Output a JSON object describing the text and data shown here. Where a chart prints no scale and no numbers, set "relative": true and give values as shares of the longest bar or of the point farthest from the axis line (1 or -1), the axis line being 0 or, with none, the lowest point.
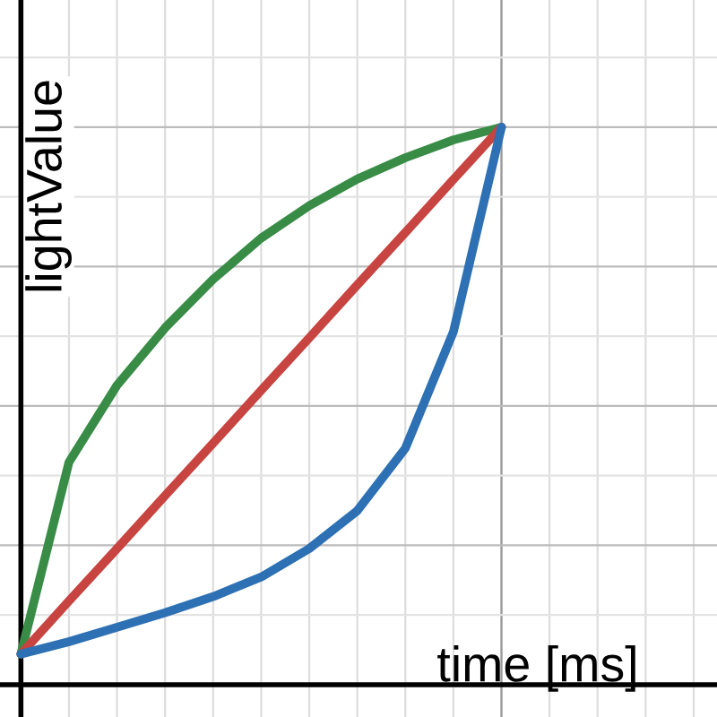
{
  "chart_data": {
    "type": "line",
    "relative": true,
    "xlabel": "time [ms]",
    "ylabel": "lightValue",
    "categories": [
      null,
      null,
      null,
      null,
      null,
      null,
      null,
      null,
      null,
      null,
      null,
      null,
      null,
      null,
      null
    ],
    "series": [
      {
        "color": "#388c46",
        "values": [
          0.055,
          0.399,
          0.537,
          0.64,
          0.727,
          0.801,
          0.859,
          0.907,
          0.945,
          0.977,
          1,
          null,
          null,
          null,
          null
        ]
      },
      {
        "color": "#c74440",
        "values": [
          0.055,
          0.15,
          0.244,
          0.339,
          0.433,
          0.528,
          0.622,
          0.717,
          0.811,
          0.906,
          1,
          null,
          null,
          null,
          null
        ]
      },
      {
        "color": "#2d70b3",
        "values": [
          0.055,
          0.077,
          0.103,
          0.129,
          0.158,
          0.193,
          0.244,
          0.312,
          0.424,
          0.633,
          1,
          null,
          null,
          null,
          null
        ]
      }
    ],
    "grid": true,
    "marker": "none",
    "line_style": "solid",
    "legend": false
  }
}
